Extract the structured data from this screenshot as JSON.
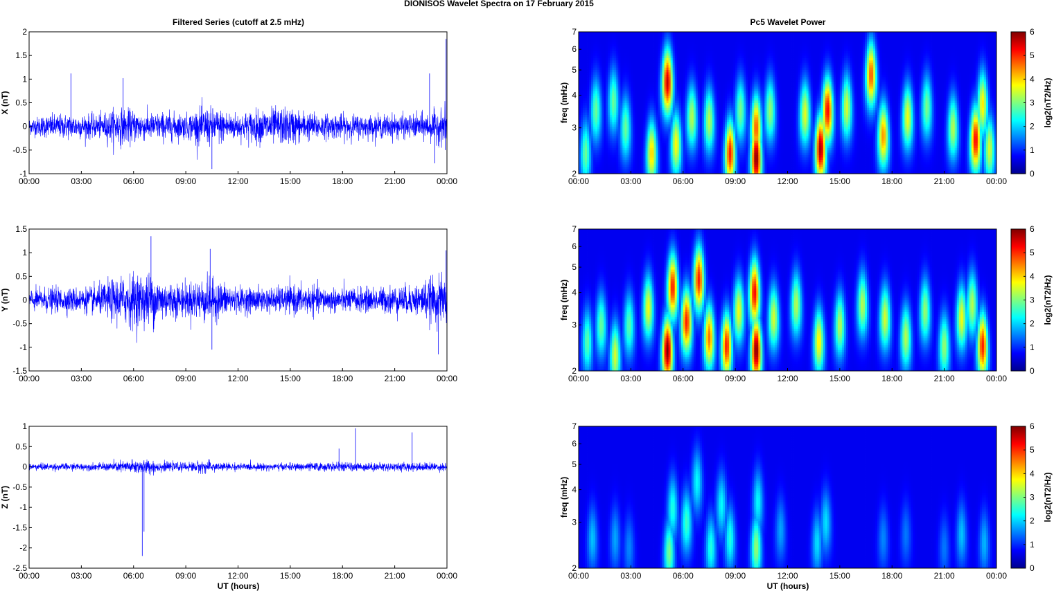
{
  "figure_title": "DIONISOS Wavelet Spectra on 17 February  2015",
  "left_column_title": "Filtered Series (cutoff at 2.5 mHz)",
  "right_column_title": "Pc5 Wavelet Power",
  "x_axis_label": "UT (hours)",
  "colorbar_label": "log2(nT2/Hz)",
  "chart_data": [
    {
      "type": "line",
      "ylabel": "X (nT)",
      "series_color": "#0000ff",
      "xlim": [
        0,
        24
      ],
      "ylim": [
        -1,
        2
      ],
      "xticks": [
        "00:00",
        "03:00",
        "06:00",
        "09:00",
        "12:00",
        "15:00",
        "18:00",
        "21:00",
        "00:00"
      ],
      "yticks": [
        "-1",
        "-0.5",
        "0",
        "0.5",
        "1",
        "1.5",
        "2"
      ],
      "envelope": {
        "amplitude": [
          0.2,
          0.28,
          0.3,
          0.3,
          0.28,
          0.45,
          0.4,
          0.32,
          0.35,
          0.3,
          0.48,
          0.42,
          0.32,
          0.4,
          0.45,
          0.45,
          0.35,
          0.3,
          0.3,
          0.28,
          0.27,
          0.3,
          0.28,
          0.35,
          0.45
        ]
      },
      "spikes": [
        {
          "x": 2.4,
          "y": 1.12
        },
        {
          "x": 5.4,
          "y": 1.02
        },
        {
          "x": 10.5,
          "y": -0.9
        },
        {
          "x": 23.0,
          "y": 1.12
        },
        {
          "x": 23.3,
          "y": -0.78
        },
        {
          "x": 23.95,
          "y": 1.85
        },
        {
          "x": 23.9,
          "y": -0.5
        }
      ]
    },
    {
      "type": "line",
      "ylabel": "Y (nT)",
      "series_color": "#0000ff",
      "xlim": [
        0,
        24
      ],
      "ylim": [
        -1.5,
        1.5
      ],
      "xticks": [
        "00:00",
        "03:00",
        "06:00",
        "09:00",
        "12:00",
        "15:00",
        "18:00",
        "21:00",
        "00:00"
      ],
      "yticks": [
        "-1.5",
        "-1",
        "-0.5",
        "0",
        "0.5",
        "1",
        "1.5"
      ],
      "envelope": {
        "amplitude": [
          0.25,
          0.3,
          0.3,
          0.3,
          0.35,
          0.55,
          0.65,
          0.65,
          0.45,
          0.4,
          0.55,
          0.45,
          0.3,
          0.3,
          0.3,
          0.35,
          0.35,
          0.3,
          0.3,
          0.3,
          0.3,
          0.35,
          0.35,
          0.5,
          0.6
        ]
      },
      "spikes": [
        {
          "x": 7.0,
          "y": 1.35
        },
        {
          "x": 10.5,
          "y": -1.05
        },
        {
          "x": 10.4,
          "y": 1.08
        },
        {
          "x": 23.5,
          "y": -1.15
        },
        {
          "x": 23.95,
          "y": 1.05
        }
      ]
    },
    {
      "type": "line",
      "ylabel": "Z (nT)",
      "series_color": "#0000ff",
      "xlim": [
        0,
        24
      ],
      "ylim": [
        -2.5,
        1
      ],
      "xticks": [
        "00:00",
        "03:00",
        "06:00",
        "09:00",
        "12:00",
        "15:00",
        "18:00",
        "21:00",
        "00:00"
      ],
      "yticks": [
        "-2.5",
        "-2",
        "-1.5",
        "-1",
        "-0.5",
        "0",
        "0.5",
        "1"
      ],
      "envelope": {
        "amplitude": [
          0.1,
          0.1,
          0.1,
          0.1,
          0.1,
          0.15,
          0.2,
          0.2,
          0.12,
          0.12,
          0.18,
          0.12,
          0.1,
          0.1,
          0.1,
          0.1,
          0.12,
          0.12,
          0.12,
          0.12,
          0.12,
          0.12,
          0.12,
          0.12,
          0.12
        ]
      },
      "spikes": [
        {
          "x": 6.5,
          "y": -2.2
        },
        {
          "x": 6.6,
          "y": -1.6
        },
        {
          "x": 18.75,
          "y": 0.95
        },
        {
          "x": 22.0,
          "y": 0.85
        },
        {
          "x": 17.8,
          "y": 0.45
        }
      ]
    },
    {
      "type": "heatmap",
      "ylabel": "freq (mHz)",
      "yscale": "log",
      "xlim": [
        0,
        24
      ],
      "ylim": [
        2,
        7
      ],
      "clim": [
        0,
        6
      ],
      "colormap": "jet",
      "xticks": [
        "00:00",
        "03:00",
        "06:00",
        "09:00",
        "12:00",
        "15:00",
        "18:00",
        "21:00",
        "00:00"
      ],
      "yticks": [
        "2",
        "3",
        "4",
        "5",
        "6",
        "7"
      ],
      "cbar_ticks": [
        "0",
        "1",
        "2",
        "3",
        "4",
        "5",
        "6"
      ],
      "blobs": [
        {
          "t": 0.4,
          "f": 2.4,
          "p": 2.5
        },
        {
          "t": 1.0,
          "f": 3.5,
          "p": 2.5
        },
        {
          "t": 2.0,
          "f": 3.8,
          "p": 2.5
        },
        {
          "t": 2.7,
          "f": 3.0,
          "p": 2.5
        },
        {
          "t": 4.2,
          "f": 2.4,
          "p": 3.8
        },
        {
          "t": 5.1,
          "f": 4.5,
          "p": 5.5
        },
        {
          "t": 5.6,
          "f": 2.6,
          "p": 3.5
        },
        {
          "t": 6.5,
          "f": 3.3,
          "p": 3.0
        },
        {
          "t": 7.5,
          "f": 3.2,
          "p": 3.0
        },
        {
          "t": 8.7,
          "f": 2.4,
          "p": 5.0
        },
        {
          "t": 9.3,
          "f": 3.5,
          "p": 2.6
        },
        {
          "t": 10.2,
          "f": 2.3,
          "p": 6.0
        },
        {
          "t": 10.2,
          "f": 3.0,
          "p": 4.6
        },
        {
          "t": 11.0,
          "f": 3.5,
          "p": 2.8
        },
        {
          "t": 13.0,
          "f": 3.4,
          "p": 3.3
        },
        {
          "t": 13.9,
          "f": 2.5,
          "p": 5.8
        },
        {
          "t": 14.3,
          "f": 3.5,
          "p": 5.2
        },
        {
          "t": 15.4,
          "f": 3.6,
          "p": 3.2
        },
        {
          "t": 16.8,
          "f": 4.8,
          "p": 4.6
        },
        {
          "t": 17.5,
          "f": 2.8,
          "p": 4.2
        },
        {
          "t": 18.9,
          "f": 3.3,
          "p": 3.4
        },
        {
          "t": 20.0,
          "f": 3.6,
          "p": 2.6
        },
        {
          "t": 21.5,
          "f": 3.0,
          "p": 3.0
        },
        {
          "t": 22.8,
          "f": 2.7,
          "p": 5.2
        },
        {
          "t": 23.2,
          "f": 3.7,
          "p": 3.6
        },
        {
          "t": 23.6,
          "f": 2.5,
          "p": 3.2
        }
      ]
    },
    {
      "type": "heatmap",
      "ylabel": "freq (mHz)",
      "yscale": "log",
      "xlim": [
        0,
        24
      ],
      "ylim": [
        2,
        7
      ],
      "clim": [
        0,
        6
      ],
      "colormap": "jet",
      "xticks": [
        "00:00",
        "03:00",
        "06:00",
        "09:00",
        "12:00",
        "15:00",
        "18:00",
        "21:00",
        "00:00"
      ],
      "yticks": [
        "2",
        "3",
        "4",
        "5",
        "6",
        "7"
      ],
      "cbar_ticks": [
        "0",
        "1",
        "2",
        "3",
        "4",
        "5",
        "6"
      ],
      "blobs": [
        {
          "t": 0.5,
          "f": 2.6,
          "p": 2.4
        },
        {
          "t": 1.3,
          "f": 3.0,
          "p": 2.5
        },
        {
          "t": 2.1,
          "f": 2.3,
          "p": 3.2
        },
        {
          "t": 2.9,
          "f": 3.0,
          "p": 2.4
        },
        {
          "t": 4.0,
          "f": 3.5,
          "p": 3.4
        },
        {
          "t": 5.1,
          "f": 2.4,
          "p": 6.0
        },
        {
          "t": 5.4,
          "f": 4.2,
          "p": 5.0
        },
        {
          "t": 6.2,
          "f": 3.1,
          "p": 5.0
        },
        {
          "t": 6.9,
          "f": 4.5,
          "p": 5.0
        },
        {
          "t": 7.5,
          "f": 2.7,
          "p": 4.4
        },
        {
          "t": 8.5,
          "f": 2.5,
          "p": 5.0
        },
        {
          "t": 9.2,
          "f": 3.4,
          "p": 3.4
        },
        {
          "t": 10.2,
          "f": 2.4,
          "p": 6.0
        },
        {
          "t": 10.1,
          "f": 4.0,
          "p": 5.2
        },
        {
          "t": 11.2,
          "f": 3.2,
          "p": 3.2
        },
        {
          "t": 12.5,
          "f": 3.6,
          "p": 3.0
        },
        {
          "t": 13.8,
          "f": 2.6,
          "p": 3.6
        },
        {
          "t": 15.0,
          "f": 3.0,
          "p": 3.0
        },
        {
          "t": 16.3,
          "f": 3.6,
          "p": 3.0
        },
        {
          "t": 17.6,
          "f": 3.2,
          "p": 3.2
        },
        {
          "t": 18.8,
          "f": 2.7,
          "p": 3.0
        },
        {
          "t": 19.9,
          "f": 3.4,
          "p": 2.8
        },
        {
          "t": 21.0,
          "f": 2.5,
          "p": 2.8
        },
        {
          "t": 22.0,
          "f": 3.2,
          "p": 3.4
        },
        {
          "t": 22.6,
          "f": 3.6,
          "p": 3.0
        },
        {
          "t": 23.2,
          "f": 2.5,
          "p": 5.0
        }
      ]
    },
    {
      "type": "heatmap",
      "ylabel": "freq (mHz)",
      "yscale": "log",
      "xlim": [
        0,
        24
      ],
      "ylim": [
        2,
        7
      ],
      "clim": [
        0,
        6
      ],
      "colormap": "jet",
      "xticks": [
        "00:00",
        "03:00",
        "06:00",
        "09:00",
        "12:00",
        "15:00",
        "18:00",
        "21:00",
        "00:00"
      ],
      "yticks": [
        "2",
        "3",
        "4",
        "5",
        "6",
        "7"
      ],
      "cbar_ticks": [
        "0",
        "1",
        "2",
        "3",
        "4",
        "5",
        "6"
      ],
      "blobs": [
        {
          "t": 0.8,
          "f": 2.6,
          "p": 1.4
        },
        {
          "t": 2.1,
          "f": 2.6,
          "p": 1.2
        },
        {
          "t": 2.9,
          "f": 2.4,
          "p": 1.0
        },
        {
          "t": 5.2,
          "f": 2.3,
          "p": 2.6
        },
        {
          "t": 5.4,
          "f": 3.4,
          "p": 2.0
        },
        {
          "t": 6.2,
          "f": 3.0,
          "p": 2.2
        },
        {
          "t": 6.8,
          "f": 4.3,
          "p": 1.8
        },
        {
          "t": 7.6,
          "f": 2.4,
          "p": 2.0
        },
        {
          "t": 8.2,
          "f": 3.5,
          "p": 1.8
        },
        {
          "t": 8.7,
          "f": 2.6,
          "p": 2.0
        },
        {
          "t": 10.2,
          "f": 2.4,
          "p": 2.8
        },
        {
          "t": 10.3,
          "f": 3.6,
          "p": 1.8
        },
        {
          "t": 11.6,
          "f": 2.8,
          "p": 1.2
        },
        {
          "t": 13.7,
          "f": 2.5,
          "p": 1.6
        },
        {
          "t": 14.2,
          "f": 3.0,
          "p": 1.6
        },
        {
          "t": 17.5,
          "f": 2.6,
          "p": 1.0
        },
        {
          "t": 18.8,
          "f": 2.7,
          "p": 0.9
        },
        {
          "t": 21.0,
          "f": 2.4,
          "p": 0.9
        },
        {
          "t": 22.0,
          "f": 2.7,
          "p": 1.4
        },
        {
          "t": 23.3,
          "f": 2.5,
          "p": 1.3
        }
      ]
    }
  ]
}
